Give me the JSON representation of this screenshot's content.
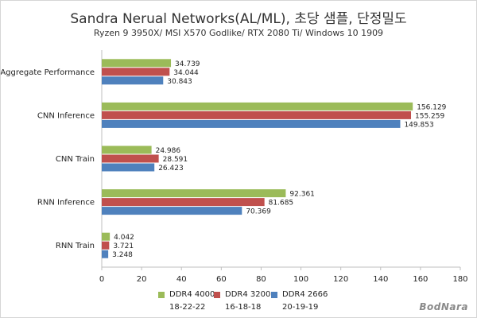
{
  "header": {
    "title": "Sandra Nerual Networks(AL/ML), 초당 샘플, 단정밀도",
    "subtitle": "Ryzen 9 3950X/ MSI X570 Godlike/ RTX 2080 Ti/ Windows 10 1909"
  },
  "chart_data": {
    "type": "bar",
    "orientation": "horizontal",
    "categories": [
      "Aggregate Performance",
      "CNN Inference",
      "CNN Train",
      "RNN Inference",
      "RNN Train"
    ],
    "series": [
      {
        "name": "DDR4 4000",
        "timing": "18-22-22",
        "color": "#9bbb59",
        "values": [
          34.739,
          156.129,
          24.986,
          92.361,
          4.042
        ]
      },
      {
        "name": "DDR4 3200",
        "timing": "16-18-18",
        "color": "#c0504d",
        "values": [
          34.044,
          155.259,
          28.591,
          81.685,
          3.721
        ]
      },
      {
        "name": "DDR4 2666",
        "timing": "20-19-19",
        "color": "#4f81bd",
        "values": [
          30.843,
          149.853,
          26.423,
          70.369,
          3.248
        ]
      }
    ],
    "value_labels": [
      [
        "34.739",
        "156.129",
        "24.986",
        "92.361",
        "4.042"
      ],
      [
        "34.044",
        "155.259",
        "28.591",
        "81.685",
        "3.721"
      ],
      [
        "30.843",
        "149.853",
        "26.423",
        "70.369",
        "3.248"
      ]
    ],
    "xlim": [
      0,
      180
    ],
    "xticks": [
      0,
      20,
      40,
      60,
      80,
      100,
      120,
      140,
      160,
      180
    ],
    "xtick_labels": [
      "0",
      "20",
      "40",
      "60",
      "80",
      "100",
      "120",
      "140",
      "160",
      "180"
    ],
    "grid": false,
    "legend_position": "bottom"
  },
  "watermark": "BodNara"
}
